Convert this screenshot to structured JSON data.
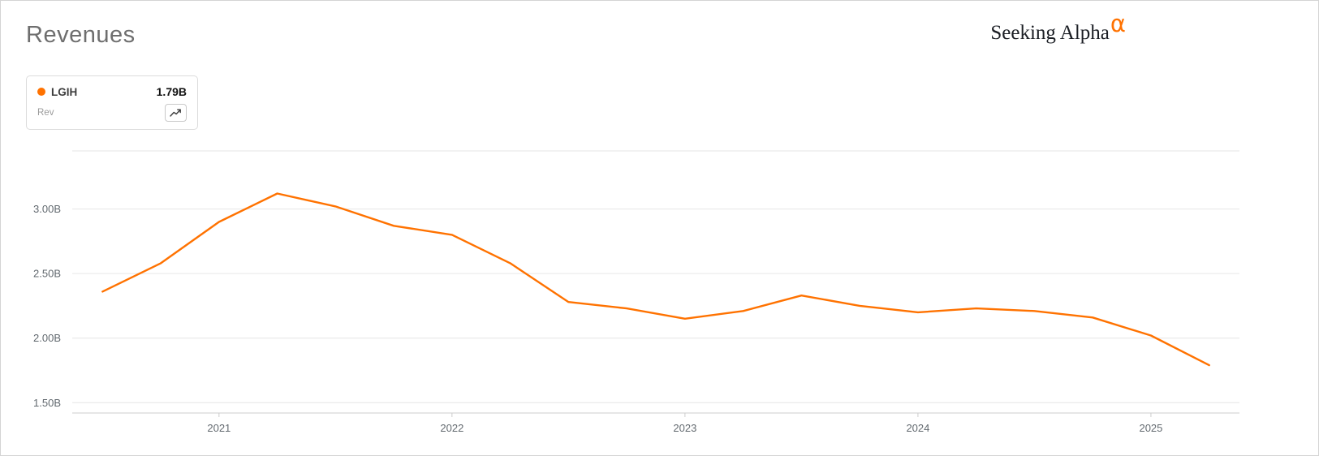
{
  "header": {
    "title": "Revenues",
    "brand_name": "Seeking Alpha",
    "brand_alpha": "α",
    "brand_alpha_color": "#ff7200"
  },
  "legend": {
    "ticker": "LGIH",
    "value": "1.79B",
    "metric": "Rev",
    "dot_color": "#ff7200",
    "chart_icon": "line-chart-icon"
  },
  "chart_data": {
    "type": "line",
    "title": "Revenues",
    "legend_position": "top-left",
    "grid": true,
    "grid_color": "#e6e6e6",
    "axis_color": "#cccccc",
    "label_color": "#62696f",
    "xlim": [
      2020.37,
      2025.38
    ],
    "ylim": [
      1.42,
      3.45
    ],
    "x_ticks": [
      {
        "value": 2021,
        "label": "2021"
      },
      {
        "value": 2022,
        "label": "2022"
      },
      {
        "value": 2023,
        "label": "2023"
      },
      {
        "value": 2024,
        "label": "2024"
      },
      {
        "value": 2025,
        "label": "2025"
      }
    ],
    "y_ticks": [
      {
        "value": 3.0,
        "label": "3.00B"
      },
      {
        "value": 2.5,
        "label": "2.50B"
      },
      {
        "value": 2.0,
        "label": "2.00B"
      },
      {
        "value": 1.5,
        "label": "1.50B"
      }
    ],
    "unit": "B",
    "series": [
      {
        "name": "LGIH Rev",
        "color": "#ff7200",
        "x": [
          2020.5,
          2020.75,
          2021.0,
          2021.25,
          2021.5,
          2021.75,
          2022.0,
          2022.25,
          2022.5,
          2022.75,
          2023.0,
          2023.25,
          2023.5,
          2023.75,
          2024.0,
          2024.25,
          2024.5,
          2024.75,
          2025.0,
          2025.25
        ],
        "values": [
          2.36,
          2.58,
          2.9,
          3.12,
          3.02,
          2.87,
          2.8,
          2.58,
          2.28,
          2.23,
          2.15,
          2.21,
          2.33,
          2.25,
          2.2,
          2.23,
          2.21,
          2.16,
          2.02,
          1.79
        ]
      }
    ]
  }
}
